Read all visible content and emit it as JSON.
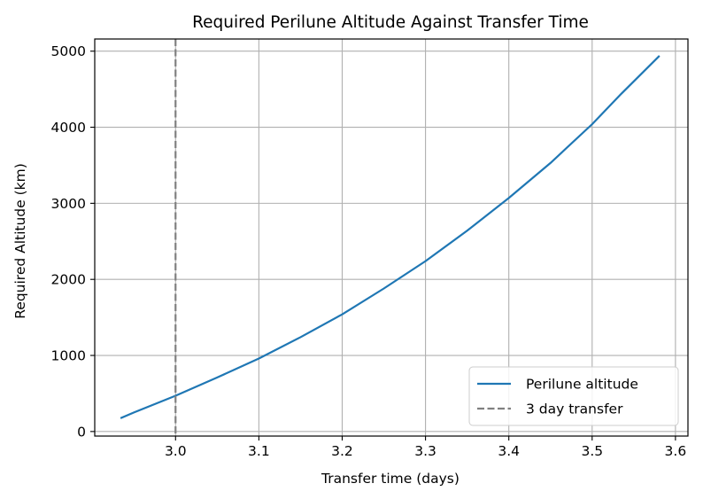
{
  "chart_data": {
    "type": "line",
    "title": "Required Perilune Altitude Against Transfer Time",
    "xlabel": "Transfer time (days)",
    "ylabel": "Required Altitude (km)",
    "xlim": [
      2.903,
      3.615
    ],
    "ylim": [
      -60,
      5160
    ],
    "xticks": [
      "3.0",
      "3.1",
      "3.2",
      "3.3",
      "3.4",
      "3.5",
      "3.6"
    ],
    "yticks": [
      "0",
      "1000",
      "2000",
      "3000",
      "4000",
      "5000"
    ],
    "xtick_values": [
      3.0,
      3.1,
      3.2,
      3.3,
      3.4,
      3.5,
      3.6
    ],
    "ytick_values": [
      0,
      1000,
      2000,
      3000,
      4000,
      5000
    ],
    "grid": true,
    "legend_position": "lower right",
    "series": [
      {
        "name": "Perilune altitude",
        "color": "#1f77b4",
        "style": "solid",
        "x": [
          2.935,
          2.95,
          3.0,
          3.05,
          3.1,
          3.15,
          3.2,
          3.25,
          3.3,
          3.35,
          3.4,
          3.45,
          3.5,
          3.535,
          3.58
        ],
        "y": [
          180,
          250,
          470,
          710,
          960,
          1240,
          1540,
          1880,
          2240,
          2640,
          3070,
          3530,
          4040,
          4440,
          4930
        ]
      }
    ],
    "reference_lines": [
      {
        "name": "3 day transfer",
        "orientation": "vertical",
        "x": 3.0,
        "color": "#808080",
        "style": "dashed"
      }
    ]
  }
}
